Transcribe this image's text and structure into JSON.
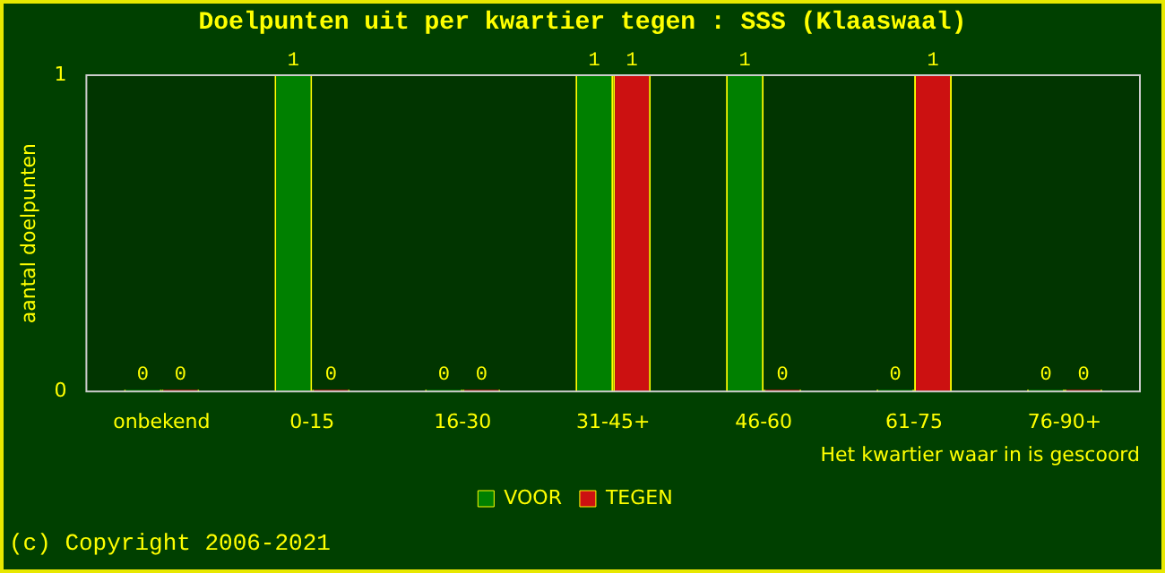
{
  "chart_data": {
    "type": "bar",
    "title": "Doelpunten uit per kwartier tegen : SSS (Klaaswaal)",
    "categories": [
      "onbekend",
      "0-15",
      "16-30",
      "31-45+",
      "46-60",
      "61-75",
      "76-90+"
    ],
    "series": [
      {
        "name": "VOOR",
        "color": "#008000",
        "values": [
          0,
          1,
          0,
          1,
          1,
          0,
          0
        ]
      },
      {
        "name": "TEGEN",
        "color": "#cc1111",
        "values": [
          0,
          0,
          0,
          1,
          0,
          1,
          0
        ]
      }
    ],
    "ylim": [
      0,
      1
    ],
    "yticks": [
      0,
      1
    ],
    "ylabel": "aantal doelpunten",
    "xlabel": "Het kwartier waar in is gescoord",
    "data_labels": true,
    "legend": "bottom",
    "grid": false,
    "annotations": [
      "(c) Copyright 2006-2021"
    ]
  }
}
